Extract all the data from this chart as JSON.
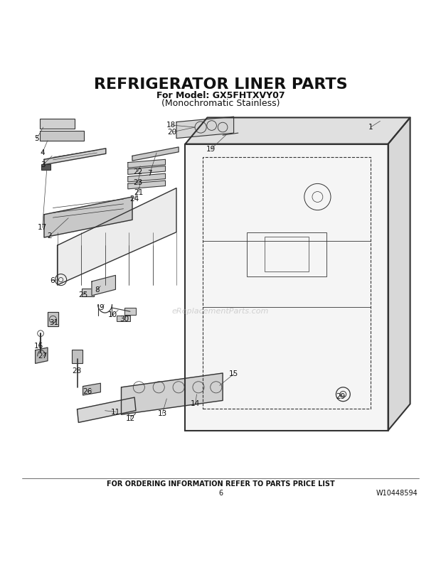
{
  "title": "REFRIGERATOR LINER PARTS",
  "subtitle1": "For Model: GX5FHTXVY07",
  "subtitle2": "(Monochromatic Stainless)",
  "footer_text": "FOR ORDERING INFORMATION REFER TO PARTS PRICE LIST",
  "page_number": "6",
  "part_number": "W10448594",
  "watermark": "eReplacementParts.com",
  "bg_color": "#ffffff",
  "line_color": "#333333",
  "text_color": "#222222",
  "title_fontsize": 16,
  "subtitle_fontsize": 9,
  "footer_fontsize": 7,
  "label_fontsize": 7.5
}
